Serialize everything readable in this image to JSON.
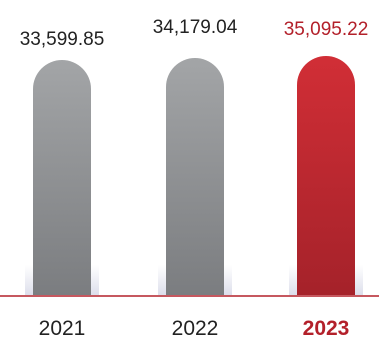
{
  "chart_data": {
    "type": "bar",
    "title": "",
    "xlabel": "",
    "ylabel": "",
    "categories": [
      "2021",
      "2022",
      "2023"
    ],
    "values": [
      33599.85,
      34179.04,
      35095.22
    ],
    "value_labels": [
      "33,599.85",
      "34,179.04",
      "35,095.22"
    ],
    "highlight_index": 2,
    "grid": false,
    "legend": "none",
    "colors": {
      "bar_gray_top": "#a3a5a7",
      "bar_gray_bottom": "#7b7d80",
      "bar_red_top": "#d12e36",
      "bar_red_bottom": "#a5222a",
      "label_default": "#222222",
      "label_highlight": "#b3202a",
      "baseline": "#b3202a",
      "shadow": "#d9dbe9"
    }
  }
}
